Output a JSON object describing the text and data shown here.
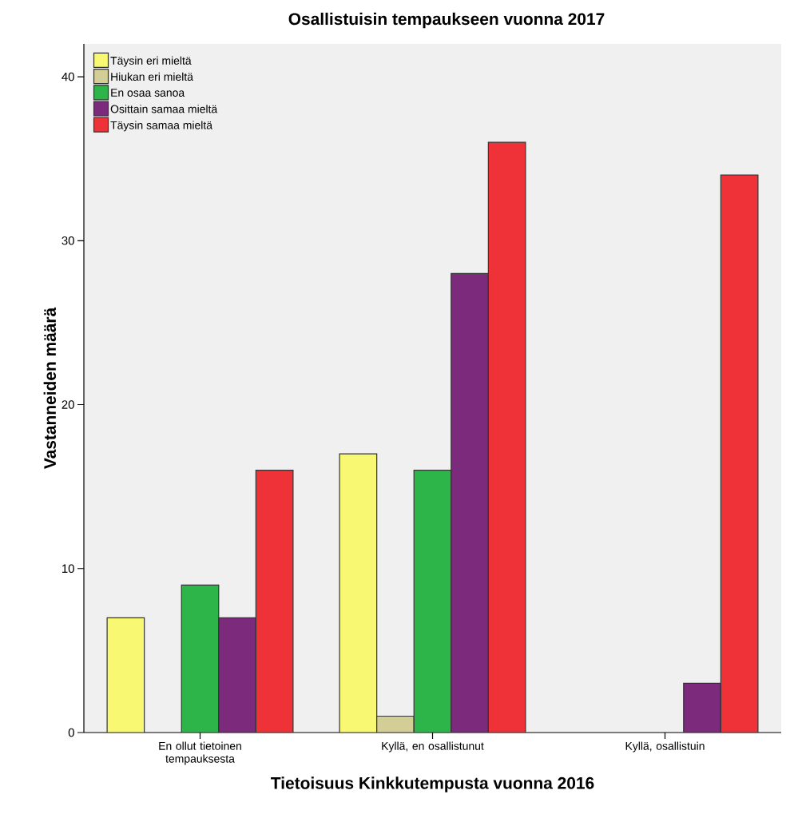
{
  "chart_data": {
    "type": "bar",
    "title": "Osallistuisin tempaukseen vuonna 2017",
    "xlabel": "Tietoisuus Kinkkutempusta vuonna 2016",
    "ylabel": "Vastanneiden määrä",
    "categories": [
      "En ollut tietoinen tempauksesta",
      "Kyllä, en osallistunut",
      "Kyllä, osallistuin"
    ],
    "series": [
      {
        "name": "Täysin eri mieltä",
        "color": "#f8f872",
        "values": [
          7,
          17,
          null
        ]
      },
      {
        "name": "Hiukan eri mieltä",
        "color": "#d3cd96",
        "values": [
          null,
          1,
          null
        ]
      },
      {
        "name": "En osaa sanoa",
        "color": "#2eb54a",
        "values": [
          9,
          16,
          null
        ]
      },
      {
        "name": "Osittain samaa mieltä",
        "color": "#7b2a7c",
        "values": [
          7,
          28,
          3
        ]
      },
      {
        "name": "Täysin samaa mieltä",
        "color": "#ef3238",
        "values": [
          16,
          36,
          34
        ]
      }
    ],
    "ylim": [
      0,
      42
    ],
    "yticks": [
      0,
      10,
      20,
      30,
      40
    ],
    "grid": false,
    "legend": "top left"
  }
}
